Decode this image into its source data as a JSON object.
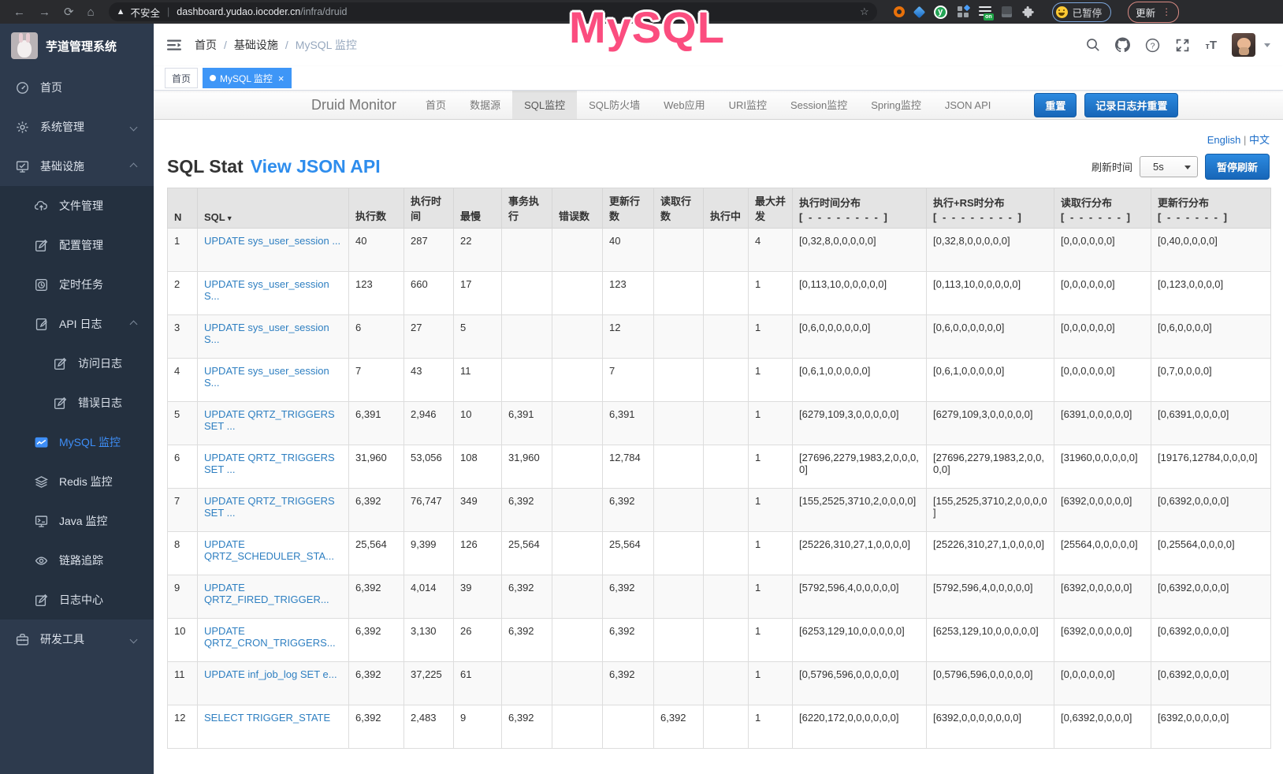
{
  "browser": {
    "security_label": "不安全",
    "url_host": "dashboard.yudao.iocoder.cn",
    "url_path": "/infra/druid",
    "paused_badge": "已暂停",
    "update_button": "更新"
  },
  "annotation": {
    "text": "MySQL",
    "color": "#fb4d7f"
  },
  "sidebar": {
    "title": "芋道管理系统",
    "items": [
      {
        "id": "home",
        "label": "首页",
        "icon": "dashboard-icon",
        "level": 0
      },
      {
        "id": "system-management",
        "label": "系统管理",
        "icon": "gear-icon",
        "level": 0,
        "chevron": "down"
      },
      {
        "id": "infrastructure",
        "label": "基础设施",
        "icon": "infrastructure-icon",
        "level": 0,
        "chevron": "up"
      },
      {
        "id": "file-management",
        "label": "文件管理",
        "icon": "file-upload-icon",
        "level": 1
      },
      {
        "id": "config-management",
        "label": "配置管理",
        "icon": "edit-icon",
        "level": 1
      },
      {
        "id": "scheduled-tasks",
        "label": "定时任务",
        "icon": "schedule-icon",
        "level": 1
      },
      {
        "id": "api-logs",
        "label": "API 日志",
        "icon": "log-icon",
        "level": 1,
        "chevron": "up"
      },
      {
        "id": "access-logs",
        "label": "访问日志",
        "icon": "edit-icon",
        "level": 2
      },
      {
        "id": "error-logs",
        "label": "错误日志",
        "icon": "edit-icon",
        "level": 2
      },
      {
        "id": "mysql-monitor",
        "label": "MySQL 监控",
        "icon": "mysql-monitor-icon",
        "level": 1,
        "active": true
      },
      {
        "id": "redis-monitor",
        "label": "Redis 监控",
        "icon": "redis-icon",
        "level": 1
      },
      {
        "id": "java-monitor",
        "label": "Java 监控",
        "icon": "java-monitor-icon",
        "level": 1
      },
      {
        "id": "trace",
        "label": "链路追踪",
        "icon": "eye-icon",
        "level": 1
      },
      {
        "id": "log-center",
        "label": "日志中心",
        "icon": "log-center-icon",
        "level": 1
      },
      {
        "id": "dev-tools",
        "label": "研发工具",
        "icon": "toolbox-icon",
        "level": 0,
        "chevron": "down"
      }
    ]
  },
  "header": {
    "breadcrumb": [
      "首页",
      "基础设施",
      "MySQL 监控"
    ]
  },
  "tags": [
    {
      "id": "home",
      "label": "首页"
    },
    {
      "id": "mysql-monitor",
      "label": "MySQL 监控",
      "active": true,
      "closable": true
    }
  ],
  "druid": {
    "brand": "Druid Monitor",
    "nav": [
      {
        "id": "home",
        "label": "首页"
      },
      {
        "id": "datasource",
        "label": "数据源"
      },
      {
        "id": "sql-stat",
        "label": "SQL监控"
      },
      {
        "id": "sql-firewall",
        "label": "SQL防火墙"
      },
      {
        "id": "web-app",
        "label": "Web应用"
      },
      {
        "id": "uri-stat",
        "label": "URI监控"
      },
      {
        "id": "session-stat",
        "label": "Session监控"
      },
      {
        "id": "spring-stat",
        "label": "Spring监控"
      },
      {
        "id": "json-api",
        "label": "JSON API"
      }
    ],
    "active_nav": "SQL监控",
    "reset_button": "重置",
    "log_reset_button": "记录日志并重置",
    "lang_en": "English",
    "lang_sep": "|",
    "lang_zh": "中文",
    "title": "SQL Stat",
    "title_link": "View JSON API",
    "refresh_label": "刷新时间",
    "refresh_value": "5s",
    "pause_button": "暂停刷新"
  },
  "table": {
    "headers": [
      {
        "label": "N"
      },
      {
        "label": "SQL",
        "sort": "▼"
      },
      {
        "label": "执行数"
      },
      {
        "label": "执行时间"
      },
      {
        "label": "最慢"
      },
      {
        "label": "事务执行"
      },
      {
        "label": "错误数"
      },
      {
        "label": "更新行数"
      },
      {
        "label": "读取行数"
      },
      {
        "label": "执行中"
      },
      {
        "label": "最大并发"
      },
      {
        "label": "执行时间分布",
        "sub": "[ - - - - - - - - ]"
      },
      {
        "label": "执行+RS时分布",
        "sub": "[ - - - - - - - - ]"
      },
      {
        "label": "读取行分布",
        "sub": "[ - - - - - - ]"
      },
      {
        "label": "更新行分布",
        "sub": "[ - - - - - - ]"
      }
    ],
    "rows": [
      {
        "n": "1",
        "sql": "UPDATE sys_user_session ...",
        "cells": [
          "40",
          "287",
          "22",
          "",
          "",
          "40",
          "",
          "",
          "4",
          "[0,32,8,0,0,0,0,0]",
          "[0,32,8,0,0,0,0,0]",
          "[0,0,0,0,0,0]",
          "[0,40,0,0,0,0]"
        ]
      },
      {
        "n": "2",
        "sql": "UPDATE sys_user_session S...",
        "cells": [
          "123",
          "660",
          "17",
          "",
          "",
          "123",
          "",
          "",
          "1",
          "[0,113,10,0,0,0,0,0]",
          "[0,113,10,0,0,0,0,0]",
          "[0,0,0,0,0,0]",
          "[0,123,0,0,0,0]"
        ]
      },
      {
        "n": "3",
        "sql": "UPDATE sys_user_session S...",
        "cells": [
          "6",
          "27",
          "5",
          "",
          "",
          "12",
          "",
          "",
          "1",
          "[0,6,0,0,0,0,0,0]",
          "[0,6,0,0,0,0,0,0]",
          "[0,0,0,0,0,0]",
          "[0,6,0,0,0,0]"
        ]
      },
      {
        "n": "4",
        "sql": "UPDATE sys_user_session S...",
        "cells": [
          "7",
          "43",
          "11",
          "",
          "",
          "7",
          "",
          "",
          "1",
          "[0,6,1,0,0,0,0,0]",
          "[0,6,1,0,0,0,0,0]",
          "[0,0,0,0,0,0]",
          "[0,7,0,0,0,0]"
        ]
      },
      {
        "n": "5",
        "sql": "UPDATE QRTZ_TRIGGERS SET ...",
        "cells": [
          "6,391",
          "2,946",
          "10",
          "6,391",
          "",
          "6,391",
          "",
          "",
          "1",
          "[6279,109,3,0,0,0,0,0]",
          "[6279,109,3,0,0,0,0,0]",
          "[6391,0,0,0,0,0]",
          "[0,6391,0,0,0,0]"
        ]
      },
      {
        "n": "6",
        "sql": "UPDATE QRTZ_TRIGGERS SET ...",
        "cells": [
          "31,960",
          "53,056",
          "108",
          "31,960",
          "",
          "12,784",
          "",
          "",
          "1",
          "[27696,2279,1983,2,0,0,0,0]",
          "[27696,2279,1983,2,0,0,0,0]",
          "[31960,0,0,0,0,0]",
          "[19176,12784,0,0,0,0]"
        ]
      },
      {
        "n": "7",
        "sql": "UPDATE QRTZ_TRIGGERS SET ...",
        "cells": [
          "6,392",
          "76,747",
          "349",
          "6,392",
          "",
          "6,392",
          "",
          "",
          "1",
          "[155,2525,3710,2,0,0,0,0]",
          "[155,2525,3710,2,0,0,0,0]",
          "[6392,0,0,0,0,0]",
          "[0,6392,0,0,0,0]"
        ]
      },
      {
        "n": "8",
        "sql": "UPDATE QRTZ_SCHEDULER_STA...",
        "cells": [
          "25,564",
          "9,399",
          "126",
          "25,564",
          "",
          "25,564",
          "",
          "",
          "1",
          "[25226,310,27,1,0,0,0,0]",
          "[25226,310,27,1,0,0,0,0]",
          "[25564,0,0,0,0,0]",
          "[0,25564,0,0,0,0]"
        ]
      },
      {
        "n": "9",
        "sql": "UPDATE QRTZ_FIRED_TRIGGER...",
        "cells": [
          "6,392",
          "4,014",
          "39",
          "6,392",
          "",
          "6,392",
          "",
          "",
          "1",
          "[5792,596,4,0,0,0,0,0]",
          "[5792,596,4,0,0,0,0,0]",
          "[6392,0,0,0,0,0]",
          "[0,6392,0,0,0,0]"
        ]
      },
      {
        "n": "10",
        "sql": "UPDATE QRTZ_CRON_TRIGGERS...",
        "cells": [
          "6,392",
          "3,130",
          "26",
          "6,392",
          "",
          "6,392",
          "",
          "",
          "1",
          "[6253,129,10,0,0,0,0,0]",
          "[6253,129,10,0,0,0,0,0]",
          "[6392,0,0,0,0,0]",
          "[0,6392,0,0,0,0]"
        ]
      },
      {
        "n": "11",
        "sql": "UPDATE inf_job_log SET e...",
        "cells": [
          "6,392",
          "37,225",
          "61",
          "",
          "",
          "6,392",
          "",
          "",
          "1",
          "[0,5796,596,0,0,0,0,0]",
          "[0,5796,596,0,0,0,0,0]",
          "[0,0,0,0,0,0]",
          "[0,6392,0,0,0,0]"
        ]
      },
      {
        "n": "12",
        "sql": "SELECT TRIGGER_STATE",
        "cells": [
          "6,392",
          "2,483",
          "9",
          "6,392",
          "",
          "",
          "6,392",
          "",
          "1",
          "[6220,172,0,0,0,0,0,0]",
          "[6392,0,0,0,0,0,0,0]",
          "[0,6392,0,0,0,0]",
          "[6392,0,0,0,0,0]"
        ]
      }
    ]
  }
}
